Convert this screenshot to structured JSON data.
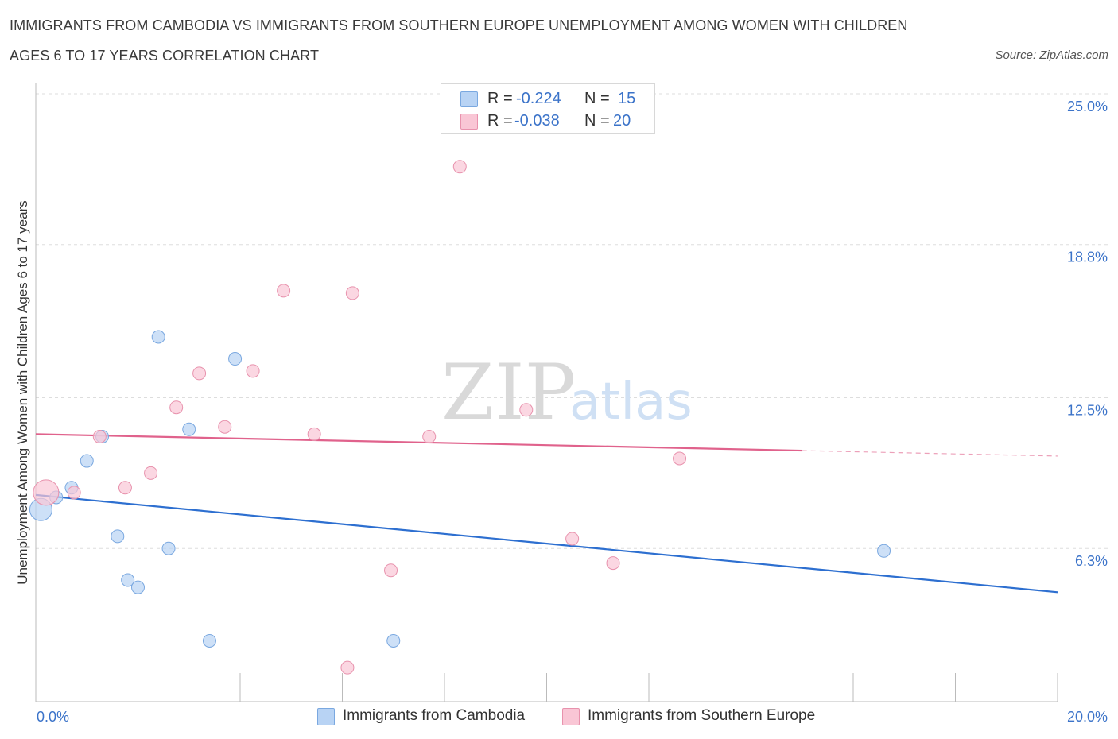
{
  "title_line1": "IMMIGRANTS FROM CAMBODIA VS IMMIGRANTS FROM SOUTHERN EUROPE UNEMPLOYMENT AMONG WOMEN WITH CHILDREN",
  "title_line2": "AGES 6 TO 17 YEARS CORRELATION CHART",
  "source": "Source: ZipAtlas.com",
  "legend": {
    "r_label": "R =",
    "n_label": "N =",
    "cambodia_r": "-0.224",
    "cambodia_n": "15",
    "europe_r": "-0.038",
    "europe_n": "20"
  },
  "watermark": {
    "zip": "ZIP",
    "atlas": "atlas"
  },
  "colors": {
    "blue_fill": "#b8d3f4",
    "blue_stroke": "#7aa8e0",
    "blue_line": "#2d6fd0",
    "pink_fill": "#f9c6d5",
    "pink_stroke": "#e892ad",
    "pink_line": "#e0628c",
    "axis_label": "#3b73c9",
    "grid": "#dddddd"
  },
  "chart_data": {
    "type": "scatter",
    "xlabel": "",
    "ylabel": "Unemployment Among Women with Children Ages 6 to 17 years",
    "xlim": [
      0,
      20
    ],
    "ylim": [
      0,
      25
    ],
    "x_tick_labels": [
      "0.0%",
      "20.0%"
    ],
    "y_ticks": [
      6.3,
      12.5,
      18.8,
      25.0
    ],
    "y_tick_labels": [
      "6.3%",
      "12.5%",
      "18.8%",
      "25.0%"
    ],
    "series": [
      {
        "name": "Immigrants from Cambodia",
        "color": "blue",
        "points": [
          {
            "x": 0.1,
            "y": 7.9,
            "s": 14
          },
          {
            "x": 0.4,
            "y": 8.4,
            "s": 8
          },
          {
            "x": 0.7,
            "y": 8.8,
            "s": 8
          },
          {
            "x": 1.0,
            "y": 9.9,
            "s": 8
          },
          {
            "x": 1.3,
            "y": 10.9,
            "s": 8
          },
          {
            "x": 1.6,
            "y": 6.8,
            "s": 8
          },
          {
            "x": 1.8,
            "y": 5.0,
            "s": 8
          },
          {
            "x": 2.0,
            "y": 4.7,
            "s": 8
          },
          {
            "x": 2.4,
            "y": 15.0,
            "s": 8
          },
          {
            "x": 2.6,
            "y": 6.3,
            "s": 8
          },
          {
            "x": 3.0,
            "y": 11.2,
            "s": 8
          },
          {
            "x": 3.4,
            "y": 2.5,
            "s": 8
          },
          {
            "x": 3.9,
            "y": 14.1,
            "s": 8
          },
          {
            "x": 7.0,
            "y": 2.5,
            "s": 8
          },
          {
            "x": 16.6,
            "y": 6.2,
            "s": 8
          }
        ],
        "trend": {
          "x0": 0.0,
          "y0": 8.5,
          "x1": 20.0,
          "y1": 4.5,
          "solid_to": 20.0
        }
      },
      {
        "name": "Immigrants from Southern Europe",
        "color": "pink",
        "points": [
          {
            "x": 0.2,
            "y": 8.6,
            "s": 16
          },
          {
            "x": 0.75,
            "y": 8.6,
            "s": 8
          },
          {
            "x": 1.25,
            "y": 10.9,
            "s": 8
          },
          {
            "x": 1.75,
            "y": 8.8,
            "s": 8
          },
          {
            "x": 2.25,
            "y": 9.4,
            "s": 8
          },
          {
            "x": 2.75,
            "y": 12.1,
            "s": 8
          },
          {
            "x": 3.2,
            "y": 13.5,
            "s": 8
          },
          {
            "x": 3.7,
            "y": 11.3,
            "s": 8
          },
          {
            "x": 4.25,
            "y": 13.6,
            "s": 8
          },
          {
            "x": 4.85,
            "y": 16.9,
            "s": 8
          },
          {
            "x": 5.45,
            "y": 11.0,
            "s": 8
          },
          {
            "x": 6.2,
            "y": 16.8,
            "s": 8
          },
          {
            "x": 6.1,
            "y": 1.4,
            "s": 8
          },
          {
            "x": 6.95,
            "y": 5.4,
            "s": 8
          },
          {
            "x": 7.7,
            "y": 10.9,
            "s": 8
          },
          {
            "x": 8.3,
            "y": 22.0,
            "s": 8
          },
          {
            "x": 9.6,
            "y": 12.0,
            "s": 8
          },
          {
            "x": 10.5,
            "y": 6.7,
            "s": 8
          },
          {
            "x": 11.3,
            "y": 5.7,
            "s": 8
          },
          {
            "x": 12.6,
            "y": 10.0,
            "s": 8
          }
        ],
        "trend": {
          "x0": 0.0,
          "y0": 11.0,
          "x1": 20.0,
          "y1": 10.1,
          "solid_to": 15.0
        }
      }
    ]
  }
}
